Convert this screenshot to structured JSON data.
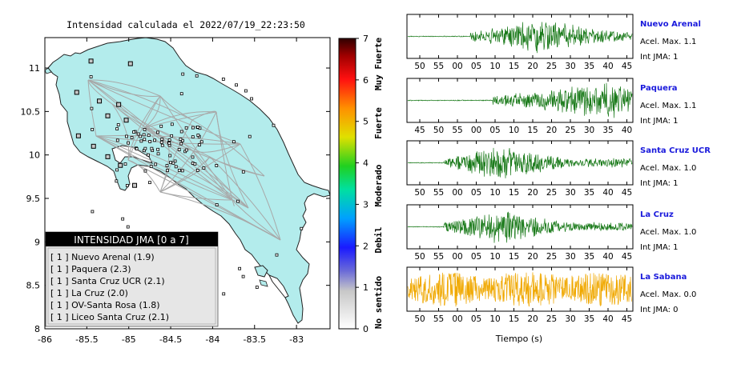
{
  "map": {
    "title": "Intensidad calculada el 2022/07/19_22:23:50",
    "lon_ticks": [
      "-86",
      "-85.5",
      "-85",
      "-84.5",
      "-84",
      "-83.5",
      "-83"
    ],
    "lat_ticks": [
      "11",
      "10.5",
      "10",
      "9.5",
      "9",
      "8.5",
      "8"
    ],
    "xlim": [
      -86,
      -82.6
    ],
    "ylim": [
      8,
      11.35
    ],
    "land_color": "#b3ecec",
    "station_markers": [
      {
        "lon": -85.45,
        "lat": 11.08,
        "value": 2
      },
      {
        "lon": -84.98,
        "lat": 11.05,
        "value": 2
      },
      {
        "lon": -85.62,
        "lat": 10.72,
        "value": 2
      },
      {
        "lon": -85.35,
        "lat": 10.62,
        "value": 2
      },
      {
        "lon": -85.12,
        "lat": 10.58,
        "value": 2
      },
      {
        "lon": -85.25,
        "lat": 10.45,
        "value": 2
      },
      {
        "lon": -85.03,
        "lat": 10.4,
        "value": 2
      },
      {
        "lon": -85.6,
        "lat": 10.22,
        "value": 2
      },
      {
        "lon": -85.42,
        "lat": 10.1,
        "value": 2
      },
      {
        "lon": -85.25,
        "lat": 9.98,
        "value": 2
      },
      {
        "lon": -85.1,
        "lat": 9.88,
        "value": 2
      },
      {
        "lon": -84.93,
        "lat": 9.65,
        "value": 2
      }
    ],
    "legend": {
      "title": "INTENSIDAD JMA [0 a 7]",
      "items": [
        "[ 1 ]  Nuevo Arenal (1.9)",
        "[ 1 ]  Paquera (2.3)",
        "[ 1 ]  Santa Cruz UCR (2.1)",
        "[ 1 ]  La Cruz (2.0)",
        "[ 1 ]  OV-Santa Rosa (1.8)",
        "[ 1 ]  Liceo Santa Cruz (2.1)"
      ]
    }
  },
  "colorbar": {
    "ticks": [
      "0",
      "1",
      "2",
      "3",
      "4",
      "5",
      "6",
      "7"
    ],
    "labels": [
      "No sentido",
      "Debil",
      "Moderado",
      "Fuerte",
      "Muy Fuerte"
    ]
  },
  "waveforms": {
    "xlabel": "Tiempo (s)",
    "panels": [
      {
        "station": "Nuevo Arenal",
        "acel": "Acel. Max. 1.1",
        "int": "Int JMA: 1",
        "color": "#1a7a1a",
        "ticks": [
          "50",
          "55",
          "00",
          "05",
          "10",
          "15",
          "20",
          "25",
          "30",
          "35",
          "40",
          "45"
        ],
        "first_tick": 50,
        "onset": 0.28,
        "peak": 0.62,
        "amp": 0.95,
        "seed": 3
      },
      {
        "station": "Paquera",
        "acel": "Acel. Max. 1.1",
        "int": "Int JMA: 1",
        "color": "#1a7a1a",
        "ticks": [
          "45",
          "50",
          "55",
          "00",
          "05",
          "10",
          "15",
          "20",
          "25",
          "30",
          "35",
          "40"
        ],
        "first_tick": 45,
        "onset": 0.38,
        "peak": 0.92,
        "amp": 0.95,
        "seed": 7
      },
      {
        "station": "Santa Cruz UCR",
        "acel": "Acel. Max. 1.0",
        "int": "Int JMA: 1",
        "color": "#1a7a1a",
        "ticks": [
          "50",
          "55",
          "00",
          "05",
          "10",
          "15",
          "20",
          "25",
          "30",
          "35",
          "40",
          "45"
        ],
        "first_tick": 50,
        "onset": 0.16,
        "peak": 0.42,
        "amp": 0.95,
        "seed": 11
      },
      {
        "station": "La Cruz",
        "acel": "Acel. Max. 1.0",
        "int": "Int JMA: 1",
        "color": "#1a7a1a",
        "ticks": [
          "50",
          "55",
          "00",
          "05",
          "10",
          "15",
          "20",
          "25",
          "30",
          "35",
          "40",
          "45"
        ],
        "first_tick": 50,
        "onset": 0.16,
        "peak": 0.42,
        "amp": 0.95,
        "seed": 17
      },
      {
        "station": "La Sabana",
        "acel": "Acel. Max. 0.0",
        "int": "Int JMA: 0",
        "color": "#f0a800",
        "ticks": [
          "50",
          "55",
          "00",
          "05",
          "10",
          "15",
          "20",
          "25",
          "30",
          "35",
          "40",
          "45"
        ],
        "first_tick": 50,
        "onset": 0.0,
        "peak": 0.5,
        "amp": 0.9,
        "seed": 23,
        "noise": true
      }
    ]
  }
}
